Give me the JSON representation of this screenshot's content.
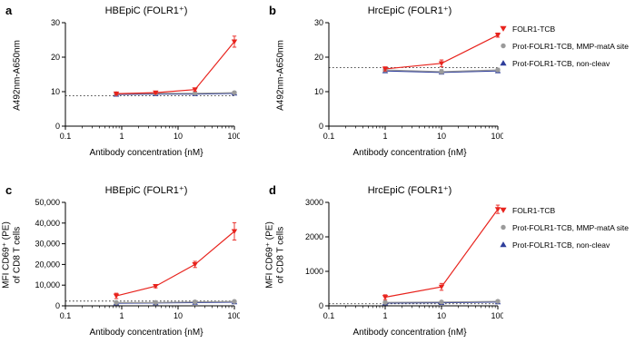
{
  "figure": {
    "background": "#ffffff",
    "axis_color": "#000000",
    "baseline_color": "#3a3a3a"
  },
  "legend": {
    "position": "right",
    "items": [
      {
        "label": "FOLR1-TCB",
        "marker": "triangle-down",
        "color": "#e8231d"
      },
      {
        "label": "Prot-FOLR1-TCB, MMP-matA site",
        "marker": "circle",
        "color": "#9b9b9b"
      },
      {
        "label": "Prot-FOLR1-TCB, non-cleav",
        "marker": "triangle-up",
        "color": "#2e3d9b"
      }
    ]
  },
  "chart_data": [
    {
      "type": "line",
      "letter": "a",
      "title": "HBEpiC (FOLR1⁺)",
      "xlabel": "Antibody concentration {nM}",
      "ylabel": "A492nm-A650nm",
      "xscale": "log",
      "xlim": [
        0.1,
        100
      ],
      "ylim": [
        0,
        30
      ],
      "xticks": [
        0.1,
        1,
        10,
        100
      ],
      "xtick_labels": [
        "0.1",
        "1",
        "10",
        "100"
      ],
      "yticks": [
        0,
        10,
        20,
        30
      ],
      "ytick_labels": [
        "0",
        "10",
        "20",
        "30"
      ],
      "baseline_y": 8.8,
      "grid": false,
      "series": [
        {
          "name": "FOLR1-TCB",
          "color": "#e8231d",
          "marker": "triangle-down",
          "x": [
            0.8,
            4,
            20,
            100
          ],
          "y": [
            9.4,
            9.7,
            10.6,
            24.5
          ],
          "yerr": [
            0.4,
            0.3,
            0.5,
            1.6
          ]
        },
        {
          "name": "Prot-FOLR1-TCB, MMP-matA site",
          "color": "#9b9b9b",
          "marker": "circle",
          "x": [
            0.8,
            4,
            20,
            100
          ],
          "y": [
            9.4,
            9.5,
            9.5,
            9.7
          ],
          "yerr": [
            0.3,
            0.3,
            0.3,
            0.4
          ]
        },
        {
          "name": "Prot-FOLR1-TCB, non-cleav",
          "color": "#2e3d9b",
          "marker": "triangle-up",
          "x": [
            0.8,
            4,
            20,
            100
          ],
          "y": [
            9.2,
            9.3,
            9.3,
            9.5
          ],
          "yerr": [
            0.3,
            0.3,
            0.3,
            0.3
          ]
        }
      ]
    },
    {
      "type": "line",
      "letter": "b",
      "title": "HrcEpiC (FOLR1⁺)",
      "xlabel": "Antibody concentration {nM}",
      "ylabel": "A492nm-A650nm",
      "xscale": "log",
      "xlim": [
        0.1,
        100
      ],
      "ylim": [
        0,
        30
      ],
      "xticks": [
        0.1,
        1,
        10,
        100
      ],
      "xtick_labels": [
        "0.1",
        "1",
        "10",
        "100"
      ],
      "yticks": [
        0,
        10,
        20,
        30
      ],
      "ytick_labels": [
        "0",
        "10",
        "20",
        "30"
      ],
      "baseline_y": 17,
      "grid": false,
      "series": [
        {
          "name": "FOLR1-TCB",
          "color": "#e8231d",
          "marker": "triangle-down",
          "x": [
            1,
            10,
            100
          ],
          "y": [
            16.6,
            18.2,
            26.4
          ],
          "yerr": [
            0.6,
            1.0,
            0.6
          ]
        },
        {
          "name": "Prot-FOLR1-TCB, MMP-matA site",
          "color": "#9b9b9b",
          "marker": "circle",
          "x": [
            1,
            10,
            100
          ],
          "y": [
            16.3,
            15.8,
            16.3
          ],
          "yerr": [
            0.5,
            0.6,
            0.5
          ]
        },
        {
          "name": "Prot-FOLR1-TCB, non-cleav",
          "color": "#2e3d9b",
          "marker": "triangle-up",
          "x": [
            1,
            10,
            100
          ],
          "y": [
            16.0,
            15.6,
            16.0
          ],
          "yerr": [
            0.5,
            0.5,
            0.5
          ]
        }
      ]
    },
    {
      "type": "line",
      "letter": "c",
      "title": "HBEpiC (FOLR1⁺)",
      "xlabel": "Antibody concentration {nM}",
      "ylabel": "MFI CD69⁺ (PE)\nof CD8 T cells",
      "xscale": "log",
      "xlim": [
        0.1,
        100
      ],
      "ylim": [
        0,
        50000
      ],
      "xticks": [
        0.1,
        1,
        10,
        100
      ],
      "xtick_labels": [
        "0.1",
        "1",
        "10",
        "100"
      ],
      "yticks": [
        0,
        10000,
        20000,
        30000,
        40000,
        50000
      ],
      "ytick_labels": [
        "0",
        "10,000",
        "20,000",
        "30,000",
        "40,000",
        "50,000"
      ],
      "baseline_y": 2300,
      "grid": false,
      "series": [
        {
          "name": "FOLR1-TCB",
          "color": "#e8231d",
          "marker": "triangle-down",
          "x": [
            0.8,
            4,
            20,
            100
          ],
          "y": [
            4800,
            9500,
            20000,
            36000
          ],
          "yerr": [
            1300,
            800,
            1500,
            4200
          ]
        },
        {
          "name": "Prot-FOLR1-TCB, MMP-matA site",
          "color": "#9b9b9b",
          "marker": "circle",
          "x": [
            0.8,
            4,
            20,
            100
          ],
          "y": [
            1600,
            1600,
            1900,
            2100
          ],
          "yerr": [
            350,
            300,
            350,
            400
          ]
        },
        {
          "name": "Prot-FOLR1-TCB, non-cleav",
          "color": "#2e3d9b",
          "marker": "triangle-up",
          "x": [
            0.8,
            4,
            20,
            100
          ],
          "y": [
            1300,
            1400,
            1600,
            1800
          ],
          "yerr": [
            300,
            300,
            300,
            300
          ]
        }
      ]
    },
    {
      "type": "line",
      "letter": "d",
      "title": "HrcEpiC (FOLR1⁺)",
      "xlabel": "Antibody concentration {nM}",
      "ylabel": "MFI CD69⁺ (PE)\nof CD8 T cells",
      "xscale": "log",
      "xlim": [
        0.1,
        100
      ],
      "ylim": [
        0,
        3000
      ],
      "xticks": [
        0.1,
        1,
        10,
        100
      ],
      "xtick_labels": [
        "0.1",
        "1",
        "10",
        "100"
      ],
      "yticks": [
        0,
        1000,
        2000,
        3000
      ],
      "ytick_labels": [
        "0",
        "1000",
        "2000",
        "3000"
      ],
      "baseline_y": 60,
      "grid": false,
      "series": [
        {
          "name": "FOLR1-TCB",
          "color": "#e8231d",
          "marker": "triangle-down",
          "x": [
            1,
            10,
            100
          ],
          "y": [
            250,
            550,
            2800
          ],
          "yerr": [
            70,
            100,
            120
          ]
        },
        {
          "name": "Prot-FOLR1-TCB, MMP-matA site",
          "color": "#9b9b9b",
          "marker": "circle",
          "x": [
            1,
            10,
            100
          ],
          "y": [
            100,
            110,
            130
          ],
          "yerr": [
            30,
            30,
            40
          ]
        },
        {
          "name": "Prot-FOLR1-TCB, non-cleav",
          "color": "#2e3d9b",
          "marker": "triangle-up",
          "x": [
            1,
            10,
            100
          ],
          "y": [
            80,
            90,
            110
          ],
          "yerr": [
            25,
            25,
            30
          ]
        }
      ]
    }
  ]
}
